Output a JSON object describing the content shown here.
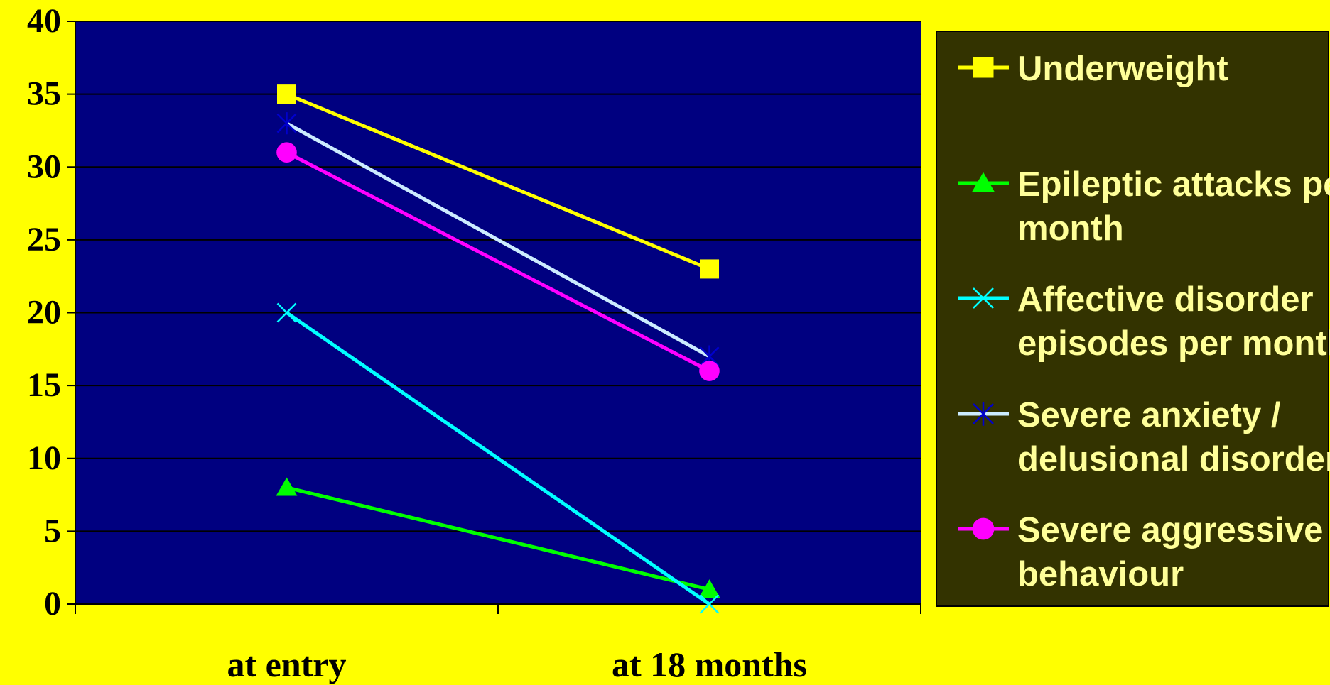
{
  "chart_data": {
    "type": "line",
    "title": "",
    "xlabel": "",
    "ylabel": "",
    "categories": [
      "at entry",
      "at 18 months"
    ],
    "ylim": [
      0,
      40
    ],
    "yticks": [
      0,
      5,
      10,
      15,
      20,
      25,
      30,
      35,
      40
    ],
    "grid": true,
    "legend_position": "right",
    "plot_background": "#000080",
    "page_background": "#FFFF00",
    "legend_background": "#333300",
    "legend_text_color": "#FFFF99",
    "series": [
      {
        "name": "Underweight",
        "values": [
          35,
          23
        ],
        "color": "#FFFF00",
        "marker": "square",
        "legend_lines": [
          "Underweight"
        ]
      },
      {
        "name": "Epileptic attacks per month",
        "values": [
          8,
          1
        ],
        "color": "#00FF00",
        "marker": "triangle",
        "legend_lines": [
          "Epileptic attacks per",
          "month"
        ]
      },
      {
        "name": "Affective disorder episodes per month",
        "values": [
          20,
          0
        ],
        "color": "#00FFFF",
        "marker": "x",
        "legend_lines": [
          "Affective disorder",
          "episodes per month"
        ]
      },
      {
        "name": "Severe anxiety / delusional disorders",
        "values": [
          33,
          17
        ],
        "color": "#CCECFF",
        "marker_color": "#0000CC",
        "marker": "asterisk",
        "legend_lines": [
          "Severe anxiety /",
          "delusional disorders"
        ]
      },
      {
        "name": "Severe aggressive behaviour",
        "values": [
          31,
          16
        ],
        "color": "#FF00FF",
        "marker": "circle",
        "legend_lines": [
          "Severe aggressive",
          "behaviour"
        ]
      }
    ]
  }
}
